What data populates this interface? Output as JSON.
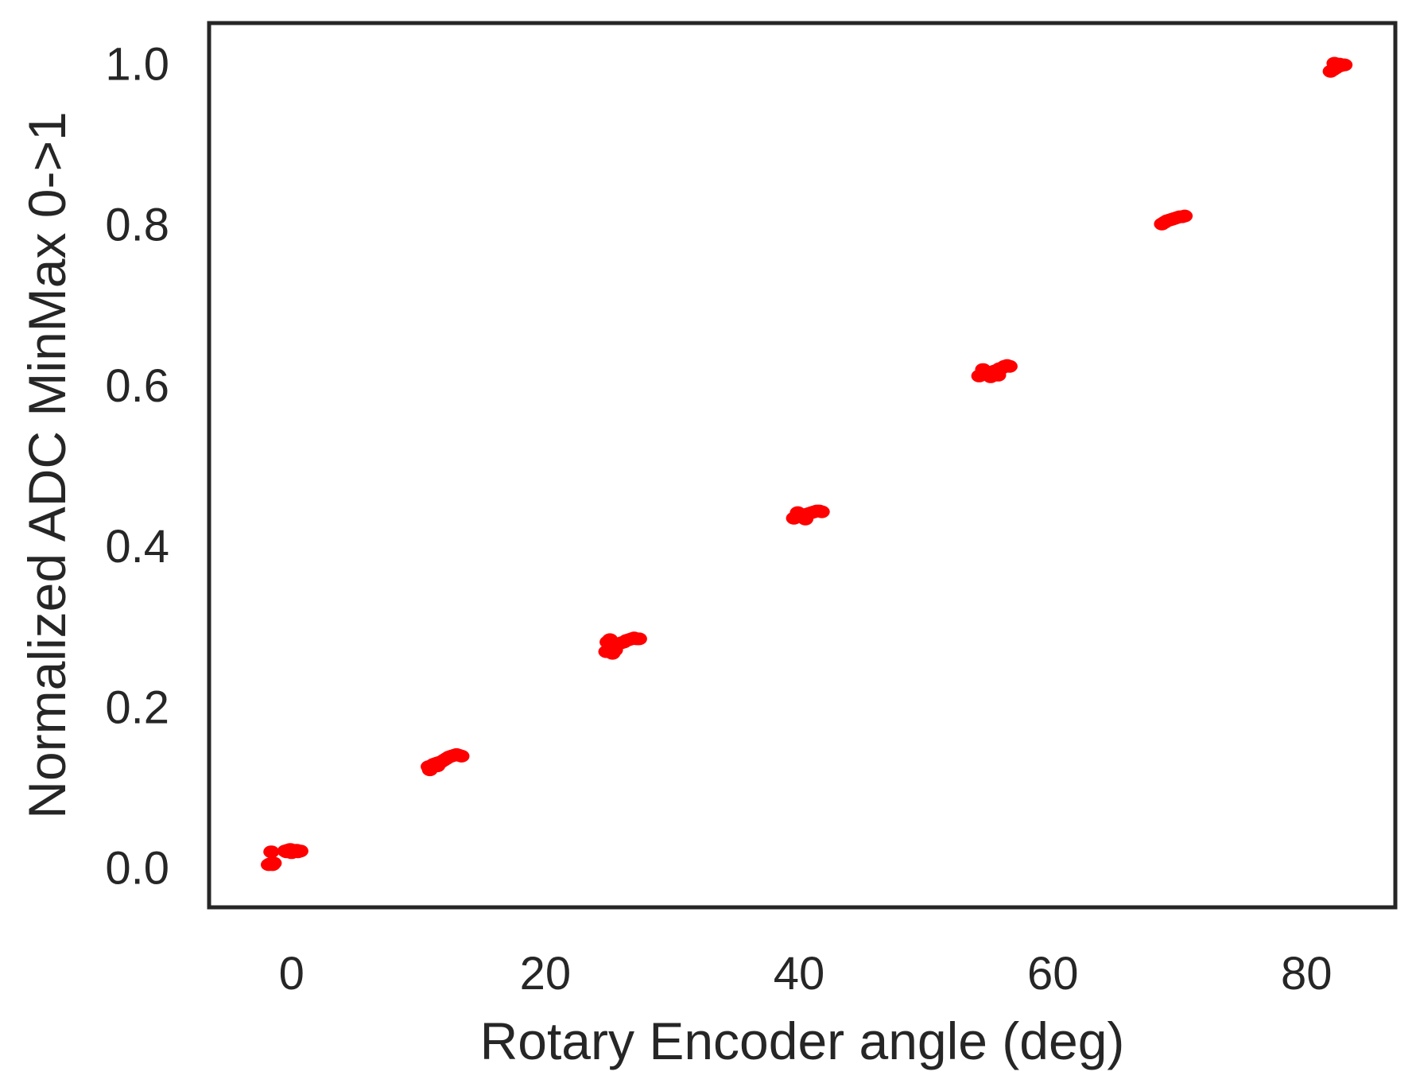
{
  "chart_data": {
    "type": "scatter",
    "xlabel": "Rotary Encoder angle (deg)",
    "ylabel": "Normalized ADC MinMax 0->1",
    "xlim": [
      -6.5,
      87
    ],
    "ylim": [
      -0.05,
      1.05
    ],
    "xticks": [
      0,
      20,
      40,
      60,
      80
    ],
    "yticks": [
      0.0,
      0.2,
      0.4,
      0.6,
      0.8,
      1.0
    ],
    "xtick_labels": [
      "0",
      "20",
      "40",
      "60",
      "80"
    ],
    "ytick_labels": [
      "0.0",
      "0.2",
      "0.4",
      "0.6",
      "0.8",
      "1.0"
    ],
    "grid": false,
    "marker_color": "#ff0000",
    "series": [
      {
        "x": [
          -1.8,
          -1.6,
          -1.5,
          -1.4,
          -1.7,
          -1.6,
          -0.5,
          -0.3,
          -0.1,
          0.1,
          0.3,
          0.5,
          0.7,
          -0.4,
          0.0,
          0.4,
          10.8,
          11.0,
          11.2,
          11.4,
          11.6,
          11.8,
          12.0,
          12.2,
          12.4,
          12.6,
          12.8,
          13.0,
          13.2,
          13.4,
          10.9,
          11.5,
          24.8,
          25.0,
          25.2,
          25.4,
          25.6,
          25.8,
          26.0,
          26.2,
          26.4,
          26.6,
          26.8,
          27.0,
          27.2,
          27.4,
          24.9,
          25.3,
          25.1,
          25.5,
          39.6,
          39.8,
          40.0,
          40.2,
          40.4,
          40.6,
          40.8,
          41.0,
          41.2,
          41.4,
          41.6,
          41.8,
          39.9,
          40.5,
          54.2,
          54.4,
          54.6,
          54.8,
          55.0,
          55.2,
          55.4,
          55.6,
          55.8,
          56.0,
          56.2,
          56.4,
          56.6,
          54.5,
          55.1,
          55.7,
          68.6,
          68.8,
          69.0,
          69.2,
          69.4,
          69.6,
          69.8,
          70.0,
          70.2,
          70.4,
          81.9,
          82.1,
          82.3,
          82.5,
          82.7,
          82.9,
          83.0,
          82.2,
          82.6
        ],
        "y": [
          0.003,
          0.004,
          0.003,
          0.005,
          0.004,
          0.019,
          0.02,
          0.021,
          0.022,
          0.021,
          0.02,
          0.019,
          0.02,
          0.019,
          0.018,
          0.021,
          0.125,
          0.126,
          0.128,
          0.129,
          0.13,
          0.131,
          0.133,
          0.135,
          0.137,
          0.138,
          0.139,
          0.14,
          0.139,
          0.138,
          0.121,
          0.126,
          0.268,
          0.271,
          0.274,
          0.272,
          0.276,
          0.278,
          0.279,
          0.28,
          0.282,
          0.283,
          0.284,
          0.285,
          0.284,
          0.284,
          0.28,
          0.266,
          0.283,
          0.27,
          0.434,
          0.436,
          0.437,
          0.438,
          0.436,
          0.439,
          0.44,
          0.441,
          0.442,
          0.443,
          0.443,
          0.442,
          0.441,
          0.433,
          0.611,
          0.613,
          0.614,
          0.615,
          0.614,
          0.616,
          0.617,
          0.618,
          0.62,
          0.621,
          0.623,
          0.624,
          0.623,
          0.619,
          0.61,
          0.612,
          0.8,
          0.802,
          0.804,
          0.805,
          0.806,
          0.807,
          0.808,
          0.809,
          0.809,
          0.81,
          0.99,
          0.992,
          0.994,
          0.996,
          0.997,
          0.998,
          0.998,
          1.0,
          0.999
        ]
      }
    ]
  }
}
